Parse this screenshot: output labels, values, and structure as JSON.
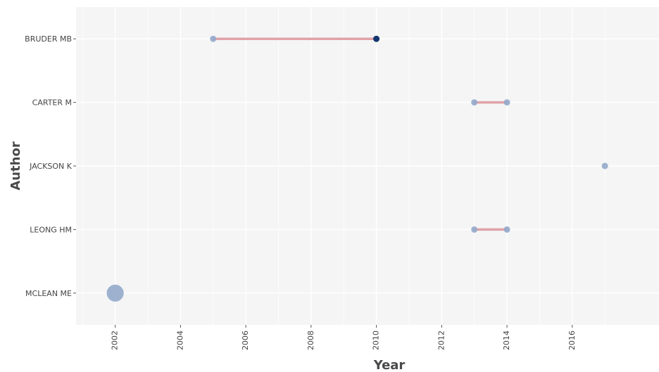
{
  "chart_data": {
    "type": "scatter",
    "title": "",
    "xlabel": "Year",
    "ylabel": "Author",
    "xlim": [
      2000.8,
      2018.7
    ],
    "x_ticks": [
      2002,
      2004,
      2006,
      2008,
      2010,
      2012,
      2014,
      2016
    ],
    "x_tick_labels": [
      "2002",
      "2004",
      "2006",
      "2008",
      "2010",
      "2012",
      "2014",
      "2016"
    ],
    "categories": [
      "BRUDER MB",
      "CARTER M",
      "JACKSON K",
      "LEONG HM",
      "MCLEAN ME"
    ],
    "grid": true,
    "segments": [
      {
        "author": "BRUDER MB",
        "x_start": 2005,
        "x_end": 2010
      },
      {
        "author": "CARTER M",
        "x_start": 2013,
        "x_end": 2014
      },
      {
        "author": "LEONG HM",
        "x_start": 2013,
        "x_end": 2014
      }
    ],
    "points": [
      {
        "author": "BRUDER MB",
        "year": 2005,
        "size": 1,
        "color": "#93aacb"
      },
      {
        "author": "BRUDER MB",
        "year": 2010,
        "size": 1,
        "color": "#14366e"
      },
      {
        "author": "CARTER M",
        "year": 2013,
        "size": 1,
        "color": "#93aacb"
      },
      {
        "author": "CARTER M",
        "year": 2014,
        "size": 1,
        "color": "#93aacb"
      },
      {
        "author": "JACKSON K",
        "year": 2017,
        "size": 1,
        "color": "#93aacb"
      },
      {
        "author": "LEONG HM",
        "year": 2013,
        "size": 1,
        "color": "#93aacb"
      },
      {
        "author": "LEONG HM",
        "year": 2014,
        "size": 1,
        "color": "#93aacb"
      },
      {
        "author": "MCLEAN ME",
        "year": 2002,
        "size": 3,
        "color": "#93aacb"
      }
    ],
    "colors": {
      "panel_bg": "#f5f5f6",
      "grid": "#ffffff",
      "segment": "#e0a3a8",
      "point_light": "#93aacb",
      "point_dark": "#14366e"
    }
  }
}
